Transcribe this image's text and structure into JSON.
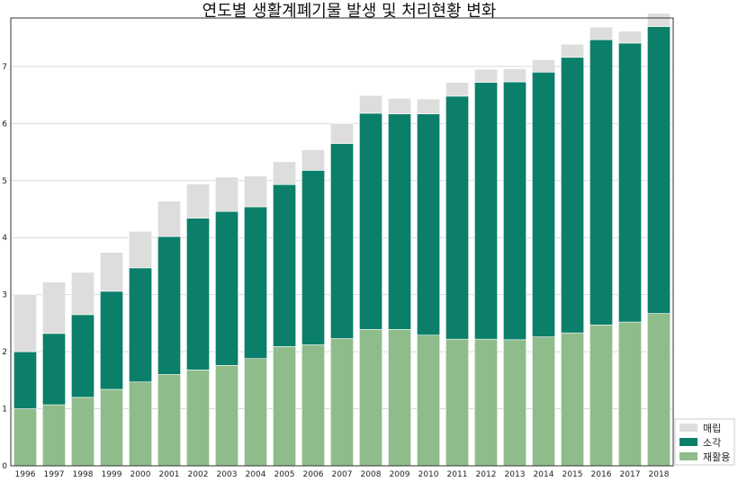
{
  "chart_data": {
    "type": "bar",
    "stacked": true,
    "title": "연도별 생활계폐기물 발생 및 처리현황 변화",
    "xlabel": "",
    "ylabel": "",
    "ylim": [
      0,
      7.85
    ],
    "yticks": [
      0,
      1,
      2,
      3,
      4,
      5,
      6,
      7
    ],
    "grid": "horizontal",
    "legend_position": "bottom-right",
    "categories": [
      "1996",
      "1997",
      "1998",
      "1999",
      "2000",
      "2001",
      "2002",
      "2003",
      "2004",
      "2005",
      "2006",
      "2007",
      "2008",
      "2009",
      "2010",
      "2011",
      "2012",
      "2013",
      "2014",
      "2015",
      "2016",
      "2017",
      "2018"
    ],
    "series": [
      {
        "name": "재활용",
        "color": "#8fbc8b",
        "values": [
          1.0,
          1.07,
          1.2,
          1.34,
          1.47,
          1.6,
          1.68,
          1.76,
          1.88,
          2.09,
          2.12,
          2.23,
          2.39,
          2.39,
          2.29,
          2.22,
          2.22,
          2.21,
          2.26,
          2.33,
          2.47,
          2.52,
          2.67
        ]
      },
      {
        "name": "소각",
        "color": "#0b7f6a",
        "values": [
          1.0,
          1.25,
          1.45,
          1.72,
          2.0,
          2.42,
          2.66,
          2.7,
          2.66,
          2.84,
          3.06,
          3.42,
          3.79,
          3.78,
          3.88,
          4.26,
          4.5,
          4.52,
          4.64,
          4.83,
          5.0,
          4.89,
          5.03
        ]
      },
      {
        "name": "매립",
        "color": "#dddddd",
        "values": [
          1.0,
          0.9,
          0.74,
          0.68,
          0.64,
          0.62,
          0.6,
          0.6,
          0.54,
          0.4,
          0.36,
          0.35,
          0.31,
          0.27,
          0.26,
          0.24,
          0.23,
          0.23,
          0.22,
          0.23,
          0.22,
          0.21,
          0.23
        ]
      }
    ]
  }
}
